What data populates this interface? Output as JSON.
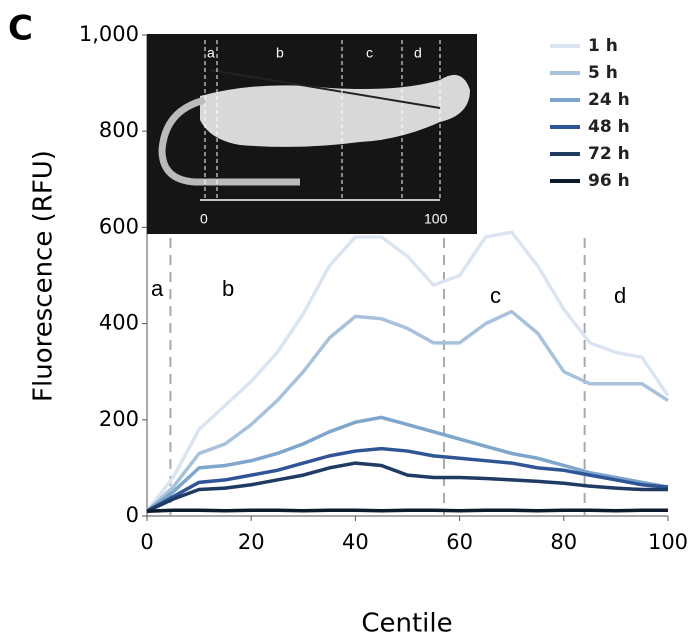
{
  "chart_data": {
    "type": "line",
    "panel_label": "C",
    "x_label": "Centile",
    "y_label": "Fluorescence (RFU)",
    "x": [
      0,
      5,
      10,
      15,
      20,
      25,
      30,
      35,
      40,
      45,
      50,
      55,
      60,
      65,
      70,
      75,
      80,
      85,
      90,
      95,
      100
    ],
    "series": [
      {
        "name": "1 h",
        "color": "#dbe5f1",
        "values": [
          10,
          80,
          180,
          230,
          280,
          340,
          420,
          520,
          580,
          580,
          540,
          480,
          500,
          580,
          590,
          520,
          430,
          360,
          340,
          330,
          250
        ]
      },
      {
        "name": "5 h",
        "color": "#a8c2dc",
        "values": [
          10,
          60,
          130,
          150,
          190,
          240,
          300,
          370,
          415,
          410,
          390,
          360,
          360,
          400,
          425,
          380,
          300,
          275,
          275,
          275,
          240
        ]
      },
      {
        "name": "24 h",
        "color": "#7ea5cb",
        "values": [
          10,
          50,
          100,
          105,
          115,
          130,
          150,
          175,
          195,
          205,
          190,
          175,
          160,
          145,
          130,
          120,
          105,
          90,
          80,
          70,
          60
        ]
      },
      {
        "name": "48 h",
        "color": "#2f5597",
        "values": [
          10,
          40,
          70,
          75,
          85,
          95,
          110,
          125,
          135,
          140,
          135,
          125,
          120,
          115,
          110,
          100,
          95,
          85,
          75,
          65,
          60
        ]
      },
      {
        "name": "72 h",
        "color": "#1f3a63",
        "values": [
          10,
          35,
          55,
          58,
          65,
          75,
          85,
          100,
          110,
          105,
          85,
          80,
          80,
          78,
          75,
          72,
          68,
          62,
          58,
          55,
          55
        ]
      },
      {
        "name": "96 h",
        "color": "#0c1a2e",
        "values": [
          10,
          12,
          12,
          11,
          12,
          12,
          11,
          12,
          12,
          11,
          12,
          12,
          11,
          12,
          12,
          11,
          12,
          12,
          11,
          12,
          12
        ]
      }
    ],
    "xlim": [
      0,
      100
    ],
    "xticks": [
      0,
      20,
      40,
      60,
      80,
      100
    ],
    "ylim": [
      0,
      1000
    ],
    "yticks": [
      0,
      200,
      400,
      600,
      800,
      {
        "value": 1000,
        "label": "1,000"
      }
    ],
    "region_boundaries": [
      4.5,
      57,
      84
    ],
    "region_labels": [
      "a",
      "b",
      "c",
      "d"
    ],
    "inset_labels": [
      "a",
      "b",
      "c",
      "d",
      "0",
      "100"
    ]
  }
}
